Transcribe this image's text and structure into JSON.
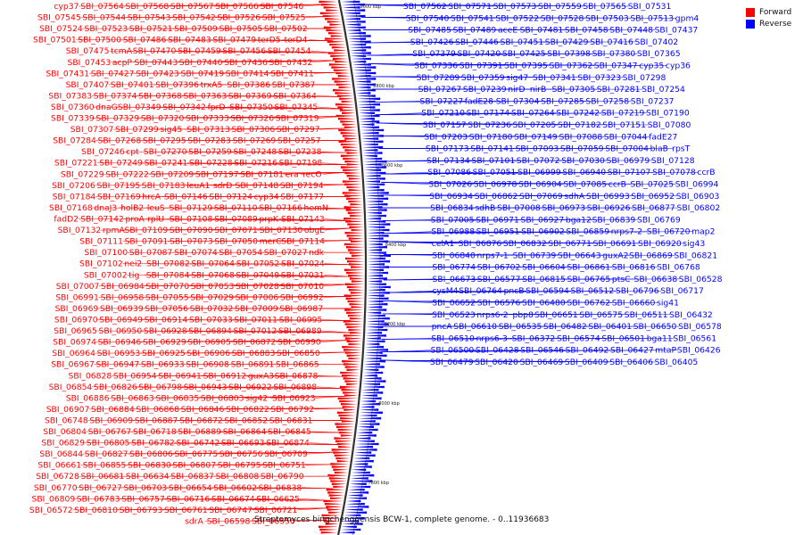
{
  "caption": "Streptomyces bingchenggensis BCW-1, complete genome. - 0..11936683",
  "legend": [
    {
      "label": "Forward",
      "color": "#ff0000"
    },
    {
      "label": "Reverse",
      "color": "#0000ff"
    }
  ],
  "colors": {
    "forward": "#ff0000",
    "reverse": "#0000ff",
    "backbone": "#333333"
  },
  "ruler_labels": [
    "9000 kbp",
    "8800 kbp",
    "8600 kbp",
    "8400 kbp",
    "8200 kbp",
    "8000 kbp",
    "7800 kbp"
  ],
  "forward_labels": [
    "cyp37",
    "SBI_07564",
    "SBI_07568",
    "SBI_07567",
    "SBI_07566",
    "SBI_07546",
    "SBI_07545",
    "SBI_07544",
    "SBI_07543",
    "SBI_07542",
    "SBI_07526",
    "SBI_07525",
    "SBI_07524",
    "SBI_07523",
    "SBI_07521",
    "SBI_07509",
    "SBI_07505",
    "SBI_07502",
    "SBI_07501",
    "SBI_07500",
    "SBI_07486",
    "SBI_07483",
    "SBI_07479",
    "terD5",
    "terD4",
    "SBI_07475",
    "tcmA",
    "SBI_07470",
    "SBI_07459",
    "SBI_07456",
    "SBI_07454",
    "SBI_07453",
    "acpP",
    "SBI_07443",
    "SBI_07440",
    "SBI_07436",
    "SBI_07432",
    "SBI_07431",
    "SBI_07427",
    "SBI_07423",
    "SBI_07419",
    "SBI_07414",
    "SBI_07411",
    "SBI_07407",
    "SBI_07401",
    "SBI_07396",
    "trxA5",
    "SBI_07386",
    "SBI_07387",
    "SBI_07383",
    "SBI_07374",
    "SBI_07368",
    "SBI_07363",
    "SBI_07369",
    "SBI_07364",
    "SBI_07360",
    "dnaG",
    "SBI_07349",
    "SBI_07342",
    "fprD",
    "SBI_07350",
    "SBI_07345",
    "SBI_07339",
    "SBI_07329",
    "SBI_07320",
    "SBI_07333",
    "SBI_07326",
    "SBI_07319",
    "SBI_07307",
    "SBI_07299",
    "sig45",
    "SBI_07313",
    "SBI_07306",
    "SBI_07297",
    "SBI_07284",
    "SBI_07268",
    "SBI_07295",
    "SBI_07283",
    "SBI_07269",
    "SBI_07257",
    "SBI_07246",
    "cpt",
    "SBI_07270",
    "SBI_07259",
    "SBI_07248",
    "SBI_07238",
    "SBI_07221",
    "SBI_07249",
    "SBI_07241",
    "SBI_07228",
    "SBI_07216",
    "SBI_07198",
    "SBI_07229",
    "SBI_07222",
    "SBI_07209",
    "SBI_07197",
    "SBI_07181",
    "era",
    "recO",
    "SBI_07206",
    "SBI_07195",
    "SBI_07183",
    "leuA1",
    "sdrD",
    "SBI_07148",
    "SBI_07194",
    "SBI_07184",
    "SBI_07169",
    "hrcA",
    "SBI_07146",
    "SBI_07124",
    "cyp34",
    "SBI_07177",
    "SBI_07168",
    "dnaJ3",
    "holB2",
    "leuS",
    "SBI_07129",
    "SBI_07110",
    "SBI_07166",
    "hemN",
    "fadD2",
    "SBI_07142",
    "proA",
    "rplU",
    "SBI_07108",
    "SBI_07089",
    "prpK",
    "SBI_07143",
    "SBI_07132",
    "rpmA",
    "SBI_07109",
    "SBI_07090",
    "SBI_07071",
    "SBI_07130",
    "obgE",
    "SBI_07111",
    "SBI_07091",
    "SBI_07073",
    "SBI_07050",
    "merC",
    "SBI_07114",
    "SBI_07100",
    "SBI_07087",
    "SBI_07074",
    "SBI_07054",
    "SBI_07027",
    "ndk",
    "SBI_07102",
    "nei2",
    "SBI_07082",
    "SBI_07064",
    "SBI_07052",
    "SBI_07024",
    "SBI_07002",
    "tig",
    "SBI_07084",
    "SBI_07068",
    "SBI_07049",
    "SBI_07031",
    "SBI_07007",
    "SBI_06984",
    "SBI_07070",
    "SBI_07053",
    "SBI_07028",
    "SBI_07010",
    "SBI_06991",
    "SBI_06958",
    "SBI_07055",
    "SBI_07029",
    "SBI_07006",
    "SBI_06992",
    "SBI_06969",
    "SBI_06939",
    "SBI_07056",
    "SBI_07032",
    "SBI_07009",
    "SBI_06987",
    "SBI_06970",
    "SBI_06949",
    "SBI_06914",
    "SBI_07033",
    "SBI_07011",
    "SBI_06995",
    "SBI_06965",
    "SBI_06950",
    "SBI_06928",
    "SBI_06894",
    "SBI_07012",
    "SBI_06989",
    "SBI_06974",
    "SBI_06946",
    "SBI_06929",
    "SBI_06905",
    "SBI_06872",
    "SBI_06990",
    "SBI_06964",
    "SBI_06953",
    "SBI_06925",
    "SBI_06906",
    "SBI_06883",
    "SBI_06850",
    "SBI_06967",
    "SBI_06947",
    "SBI_06933",
    "SBI_06908",
    "SBI_06891",
    "SBI_06865",
    "SBI_06828",
    "SBI_06954",
    "SBI_06941",
    "SBI_06912",
    "guxA3",
    "SBI_06878",
    "SBI_06854",
    "SBI_06826",
    "SBI_06798",
    "SBI_06943",
    "SBI_06922",
    "SBI_06898",
    "SBI_06886",
    "SBI_06863",
    "SBI_06835",
    "SBI_06803",
    "sig42",
    "SBI_06923",
    "SBI_06907",
    "SBI_06884",
    "SBI_06868",
    "SBI_06846",
    "SBI_06822",
    "SBI_06792",
    "SBI_06748",
    "SBI_06909",
    "SBI_06887",
    "SBI_06872",
    "SBI_06852",
    "SBI_06831",
    "SBI_06804",
    "SBI_06767",
    "SBI_06718",
    "SBI_06889",
    "SBI_06864",
    "SBI_06845",
    "SBI_06829",
    "SBI_06805",
    "SBI_06782",
    "SBI_06742",
    "SBI_06693",
    "SBI_06874",
    "SBI_06844",
    "SBI_06827",
    "SBI_06806",
    "SBI_06775",
    "SBI_06756",
    "SBI_06709",
    "SBI_06661",
    "SBI_06855",
    "SBI_06830",
    "SBI_06807",
    "SBI_06795",
    "SBI_06751",
    "SBI_06728",
    "SBI_06681",
    "SBI_06634",
    "SBI_06837",
    "SBI_06808",
    "SBI_06790",
    "SBI_06770",
    "SBI_06727",
    "SBI_06703",
    "SBI_06654",
    "SBI_06602",
    "SBI_06838",
    "SBI_06809",
    "SBI_06783",
    "SBI_06757",
    "SBI_06716",
    "SBI_06674",
    "SBI_06625",
    "SBI_06572",
    "SBI_06810",
    "SBI_06793",
    "SBI_06761",
    "SBI_06747",
    "SBI_06721",
    "sdrA",
    "SBI_06598",
    "SBI_06550"
  ],
  "reverse_labels": [
    "SBI_07562",
    "SBI_07571",
    "SBI_07573",
    "SBI_07559",
    "SBI_07565",
    "SBI_07531",
    "SBI_07540",
    "SBI_07541",
    "SBI_07522",
    "SBI_07528",
    "SBI_07503",
    "SBI_07513",
    "gpm4",
    "SBI_07485",
    "SBI_07489",
    "aceE",
    "SBI_07481",
    "SBI_07458",
    "SBI_07448",
    "SBI_07437",
    "SBI_07426",
    "SBI_07446",
    "SBI_07451",
    "SBI_07429",
    "SBI_07416",
    "SBI_07402",
    "SBI_07379",
    "SBI_07420",
    "SBI_07425",
    "SBI_07398",
    "SBI_07380",
    "SBI_07365",
    "SBI_07336",
    "SBI_07391",
    "SBI_07395",
    "SBI_07362",
    "SBI_07347",
    "cyp35",
    "cyp36",
    "SBI_07289",
    "SBI_07359",
    "sig47",
    "SBI_07341",
    "SBI_07323",
    "SBI_07298",
    "SBI_07267",
    "SBI_07239",
    "nirD",
    "nirB",
    "SBI_07305",
    "SBI_07281",
    "SBI_07254",
    "SBI_07227",
    "fadE28",
    "SBI_07304",
    "SBI_07285",
    "SBI_07258",
    "SBI_07237",
    "SBI_07210",
    "SBI_07174",
    "SBI_07264",
    "SBI_07242",
    "SBI_07219",
    "SBI_07190",
    "SBI_07157",
    "SBI_07236",
    "SBI_07205",
    "SBI_07182",
    "SBI_07151",
    "SBI_07080",
    "SBI_07203",
    "SBI_07180",
    "SBI_07149",
    "SBI_07088",
    "SBI_07044",
    "fadE27",
    "SBI_07173",
    "SBI_07141",
    "SBI_07093",
    "SBI_07059",
    "SBI_07004",
    "blaB",
    "rpsT",
    "SBI_07134",
    "SBI_07101",
    "SBI_07072",
    "SBI_07030",
    "SBI_06979",
    "SBI_07128",
    "SBI_07086",
    "SBI_07051",
    "SBI_06999",
    "SBI_06940",
    "SBI_07107",
    "SBI_07078",
    "ccrB",
    "SBI_07026",
    "SBI_06978",
    "SBI_06904",
    "SBI_07085",
    "ccrB",
    "SBI_07025",
    "SBI_06994",
    "SBI_06934",
    "SBI_06862",
    "SBI_07069",
    "sdhA",
    "SBI_06993",
    "SBI_06952",
    "SBI_06903",
    "SBI_06834",
    "sdhB",
    "SBI_07008",
    "SBI_06973",
    "SBI_06926",
    "SBI_06877",
    "SBI_06802",
    "SBI_07005",
    "SBI_06971",
    "SBI_06927",
    "bga12",
    "SBI_06839",
    "SBI_06769",
    "SBI_06988",
    "SBI_06951",
    "SBI_06902",
    "SBI_06859",
    "nrps7-2",
    "SBI_06720",
    "map2",
    "celA1",
    "SBI_06876",
    "SBI_06832",
    "SBI_06771",
    "SBI_06691",
    "SBI_06920",
    "sig43",
    "SBI_06840",
    "nrps7-1",
    "SBI_06739",
    "SBI_06643",
    "guxA2",
    "SBI_06869",
    "SBI_06821",
    "SBI_06774",
    "SBI_06702",
    "SBI_06604",
    "SBI_06861",
    "SBI_06816",
    "SBI_06768",
    "SBI_06673",
    "SBI_06577",
    "SBI_06815",
    "SBI_06765",
    "ptsC",
    "SBI_06638",
    "SBI_06528",
    "cysM4",
    "SBI_06764",
    "pncB",
    "SBI_06594",
    "SBI_06512",
    "SBI_06796",
    "SBI_06717",
    "SBI_06652",
    "SBI_06576",
    "SBI_06480",
    "SBI_06762",
    "SBI_06660",
    "sig41",
    "SBI_06523",
    "nrps6-2",
    "pbp8",
    "SBI_06651",
    "SBI_06575",
    "SBI_06511",
    "SBI_06432",
    "pncA",
    "SBI_06610",
    "SBI_06535",
    "SBI_06482",
    "SBI_06401",
    "SBI_06650",
    "SBI_06578",
    "SBI_06510",
    "nrps6-3",
    "SBI_06372",
    "SBI_06574",
    "SBI_06501",
    "bga11",
    "SBI_06561",
    "SBI_06500",
    "SBI_06428",
    "SBI_06546",
    "SBI_06492",
    "SBI_06427",
    "mtaP",
    "SBI_06426",
    "SBI_06479",
    "SBI_06420",
    "SBI_06469",
    "SBI_06409",
    "SBI_06406",
    "SBI_06405"
  ]
}
